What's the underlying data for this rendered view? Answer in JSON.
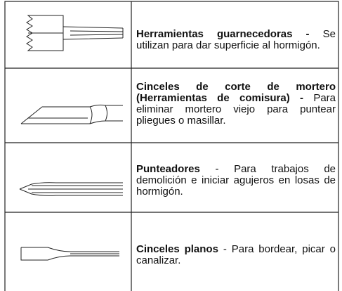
{
  "table": {
    "rows": [
      {
        "title": "Herramientas guarnecedoras -",
        "description": "Se utilizan para dar superficie al hormigón."
      },
      {
        "title": "Cinceles de corte de mortero (Herramientas de comisura) -",
        "description": "Para eliminar mortero viejo para puntear pliegues o masillar."
      },
      {
        "title": "Punteadores",
        "description": "- Para trabajos de demolición e iniciar agujeros en losas de hormigón."
      },
      {
        "title": "Cinceles planos",
        "description": "- Para bordear, picar o canalizar."
      }
    ]
  }
}
